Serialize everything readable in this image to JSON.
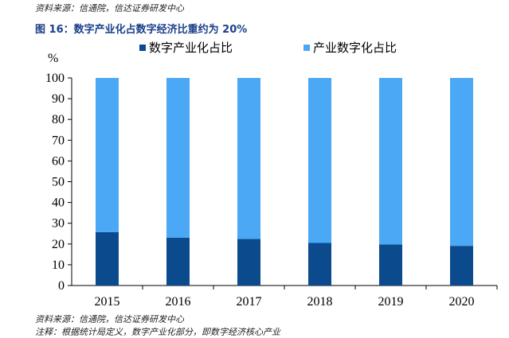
{
  "source_top": "资料来源：信通院，信达证券研发中心",
  "figure_title": "图 16：数字产业化占数字经济比重约为 20%",
  "source_bottom": "资料来源：信通院，信达证券研发中心",
  "note": "注释：根据统计局定义，数字产业化部分，即数字经济核心产业",
  "colors": {
    "digital_industrialization": "#0b4a8c",
    "industrial_digitization": "#4aa8f4"
  },
  "chart_data": {
    "type": "bar",
    "stacked": true,
    "title": "",
    "xlabel": "",
    "ylabel": "%",
    "categories": [
      "2015",
      "2016",
      "2017",
      "2018",
      "2019",
      "2020"
    ],
    "series": [
      {
        "name": "数字产业化占比",
        "values": [
          25.7,
          23.0,
          22.4,
          20.5,
          19.8,
          19.1
        ]
      },
      {
        "name": "产业数字化占比",
        "values": [
          74.3,
          77.0,
          77.6,
          79.5,
          80.2,
          80.9
        ]
      }
    ],
    "ylim": [
      0,
      100
    ],
    "yticks": [
      0,
      10,
      20,
      30,
      40,
      50,
      60,
      70,
      80,
      90,
      100
    ],
    "grid": false,
    "legend_position": "top"
  }
}
